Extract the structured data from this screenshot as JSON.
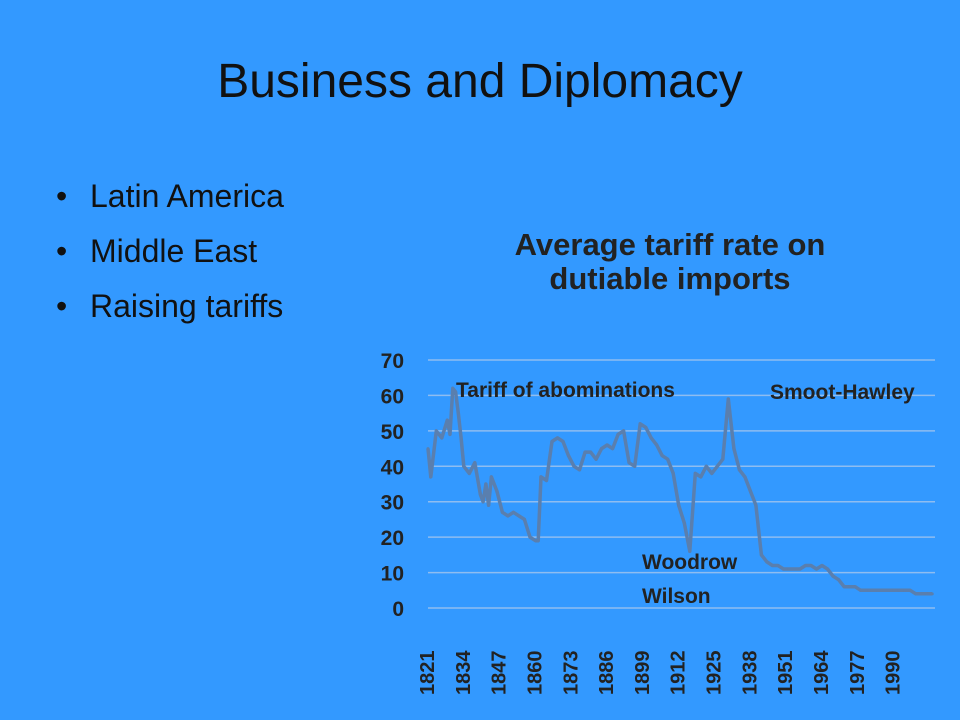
{
  "slide": {
    "title": "Business and Diplomacy",
    "bullets": [
      "Latin America",
      "Middle East",
      "Raising tariffs"
    ]
  },
  "colors": {
    "background": "#3399ff",
    "line": "#5a7fae",
    "grid": "#8fbdf0",
    "text": "#222222"
  },
  "chart_data": {
    "type": "line",
    "title": "Average tariff rate on\ndutiable imports",
    "title_lines": [
      "Average tariff rate on",
      "dutiable imports"
    ],
    "xlabel": "",
    "ylabel": "",
    "ylim": [
      0,
      70
    ],
    "yticks": [
      0,
      10,
      20,
      30,
      40,
      50,
      60,
      70
    ],
    "xlim": [
      1821,
      2005
    ],
    "xticks": [
      1821,
      1834,
      1847,
      1860,
      1873,
      1886,
      1899,
      1912,
      1925,
      1938,
      1951,
      1964,
      1977,
      1990
    ],
    "grid": true,
    "annotations": [
      {
        "text": "Tariff of abominations"
      },
      {
        "text": "Smoot-Hawley"
      },
      {
        "text": "Woodrow"
      },
      {
        "text": "Wilson"
      }
    ],
    "series": [
      {
        "x": [
          1821,
          1822,
          1824,
          1826,
          1828,
          1829,
          1830,
          1831,
          1832,
          1833,
          1834,
          1836,
          1838,
          1840,
          1841,
          1842,
          1843,
          1844,
          1846,
          1848,
          1850,
          1852,
          1854,
          1856,
          1858,
          1860,
          1861,
          1862,
          1864,
          1866,
          1868,
          1870,
          1872,
          1874,
          1876,
          1878,
          1880,
          1882,
          1884,
          1886,
          1888,
          1890,
          1892,
          1894,
          1896,
          1898,
          1900,
          1902,
          1904,
          1906,
          1908,
          1910,
          1912,
          1914,
          1916,
          1918,
          1920,
          1922,
          1924,
          1926,
          1928,
          1930,
          1932,
          1934,
          1936,
          1938,
          1940,
          1942,
          1944,
          1946,
          1948,
          1950,
          1952,
          1954,
          1956,
          1958,
          1960,
          1962,
          1964,
          1966,
          1968,
          1970,
          1972,
          1974,
          1976,
          1978,
          1980,
          1982,
          1984,
          1986,
          1988,
          1990,
          1992,
          1994,
          1996,
          1998,
          2000,
          2002,
          2004
        ],
        "y": [
          45,
          37,
          50,
          48,
          53,
          49,
          62,
          61,
          55,
          48,
          40,
          38,
          41,
          32,
          30,
          35,
          29,
          37,
          33,
          27,
          26,
          27,
          26,
          25,
          20,
          19,
          19,
          37,
          36,
          47,
          48,
          47,
          43,
          40,
          39,
          44,
          44,
          42,
          45,
          46,
          45,
          49,
          50,
          41,
          40,
          52,
          51,
          48,
          46,
          43,
          42,
          38,
          29,
          24,
          16,
          38,
          37,
          40,
          38,
          40,
          42,
          59,
          45,
          39,
          37,
          33,
          29,
          15,
          13,
          12,
          12,
          11,
          11,
          11,
          11,
          12,
          12,
          11,
          12,
          11,
          9,
          8,
          6,
          6,
          6,
          5,
          5,
          5,
          5,
          5,
          5,
          5,
          5,
          5,
          5,
          4,
          4,
          4,
          4
        ]
      }
    ]
  }
}
